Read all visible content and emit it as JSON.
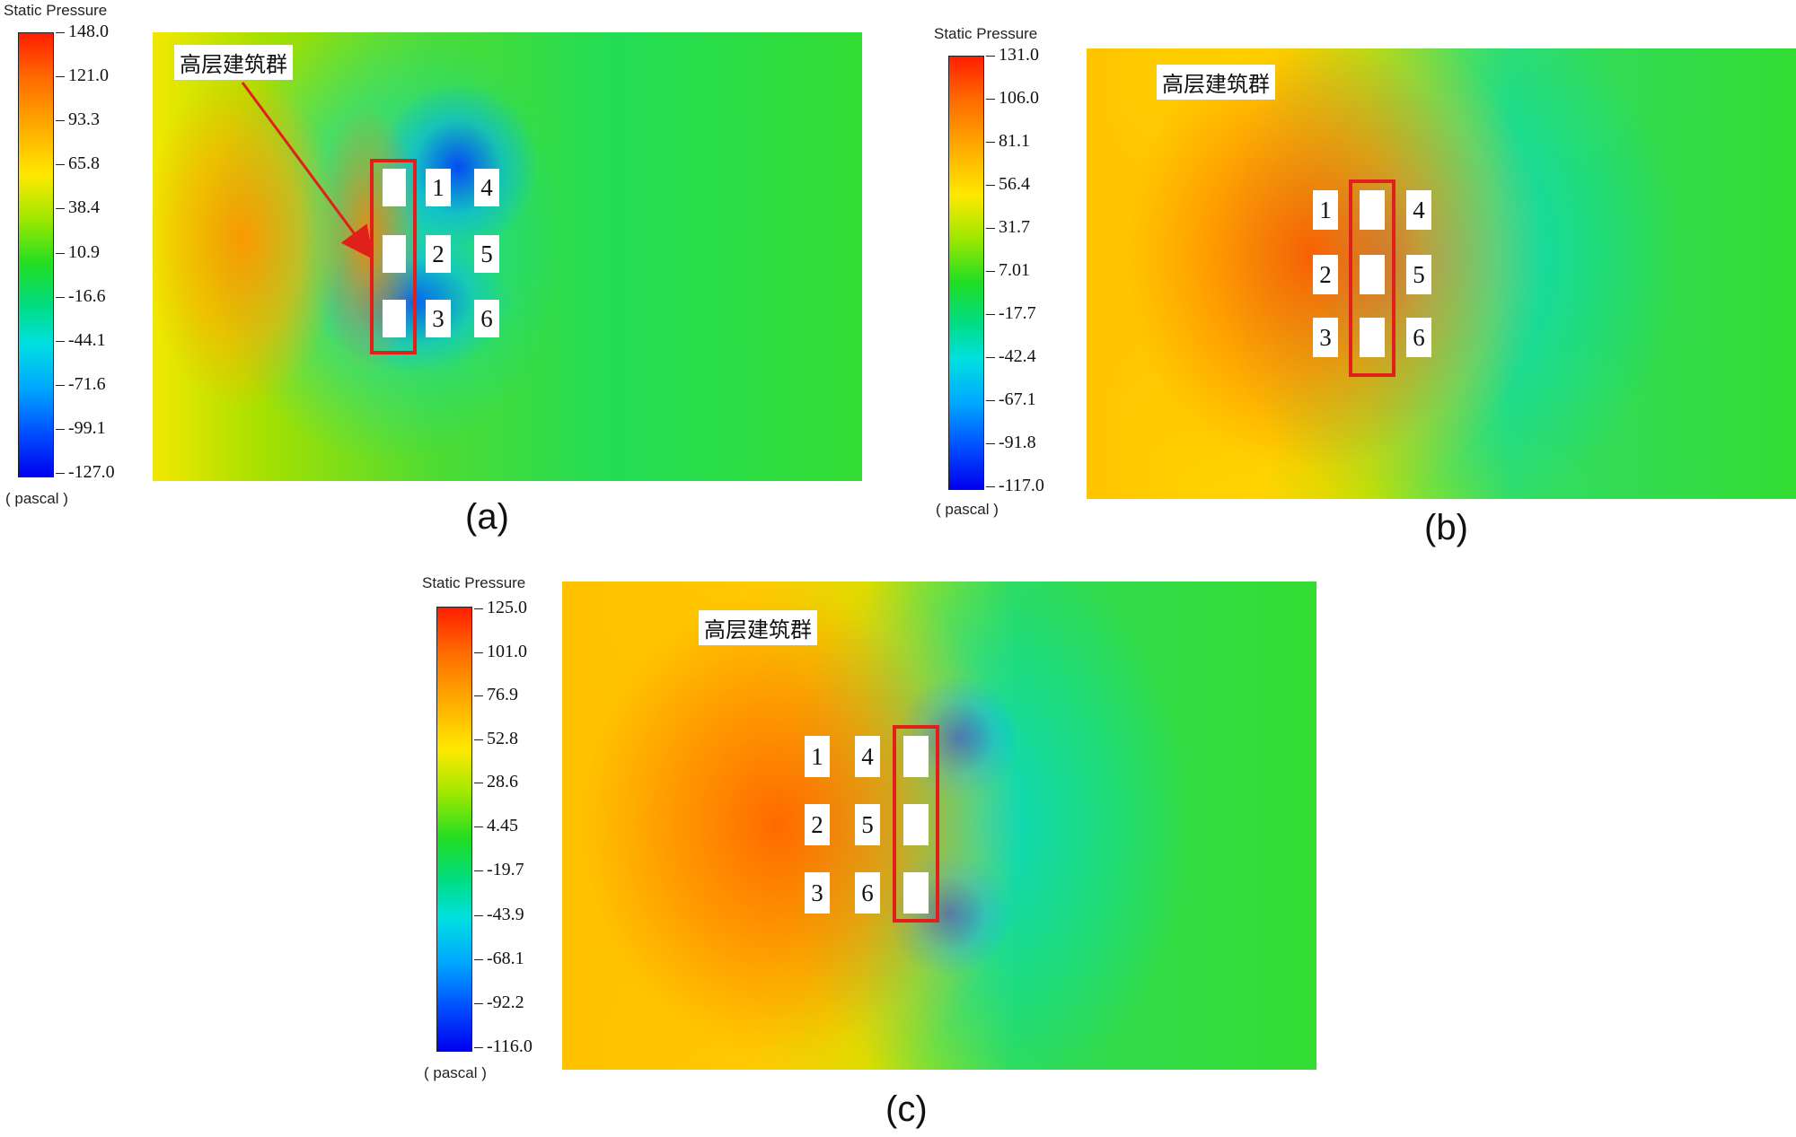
{
  "panels": [
    {
      "label": "(a)",
      "legend_title": "Static Pressure",
      "unit": "( pascal )",
      "ticks": [
        "148.0",
        "121.0",
        "93.3",
        "65.8",
        "38.4",
        "10.9",
        "-16.6",
        "-44.1",
        "-71.6",
        "-99.1",
        "-127.0"
      ],
      "annotation": "高层建筑群",
      "buildings": [
        "1",
        "2",
        "3",
        "4",
        "5",
        "6"
      ]
    },
    {
      "label": "(b)",
      "legend_title": "Static Pressure",
      "unit": "( pascal )",
      "ticks": [
        "131.0",
        "106.0",
        "81.1",
        "56.4",
        "31.7",
        "7.01",
        "-17.7",
        "-42.4",
        "-67.1",
        "-91.8",
        "-117.0"
      ],
      "annotation": "高层建筑群",
      "buildings": [
        "1",
        "2",
        "3",
        "4",
        "5",
        "6"
      ]
    },
    {
      "label": "(c)",
      "legend_title": "Static Pressure",
      "unit": "( pascal )",
      "ticks": [
        "125.0",
        "101.0",
        "76.9",
        "52.8",
        "28.6",
        "4.45",
        "-19.7",
        "-43.9",
        "-68.1",
        "-92.2",
        "-116.0"
      ],
      "annotation": "高层建筑群",
      "buildings": [
        "1",
        "2",
        "3",
        "4",
        "5",
        "6"
      ]
    }
  ]
}
